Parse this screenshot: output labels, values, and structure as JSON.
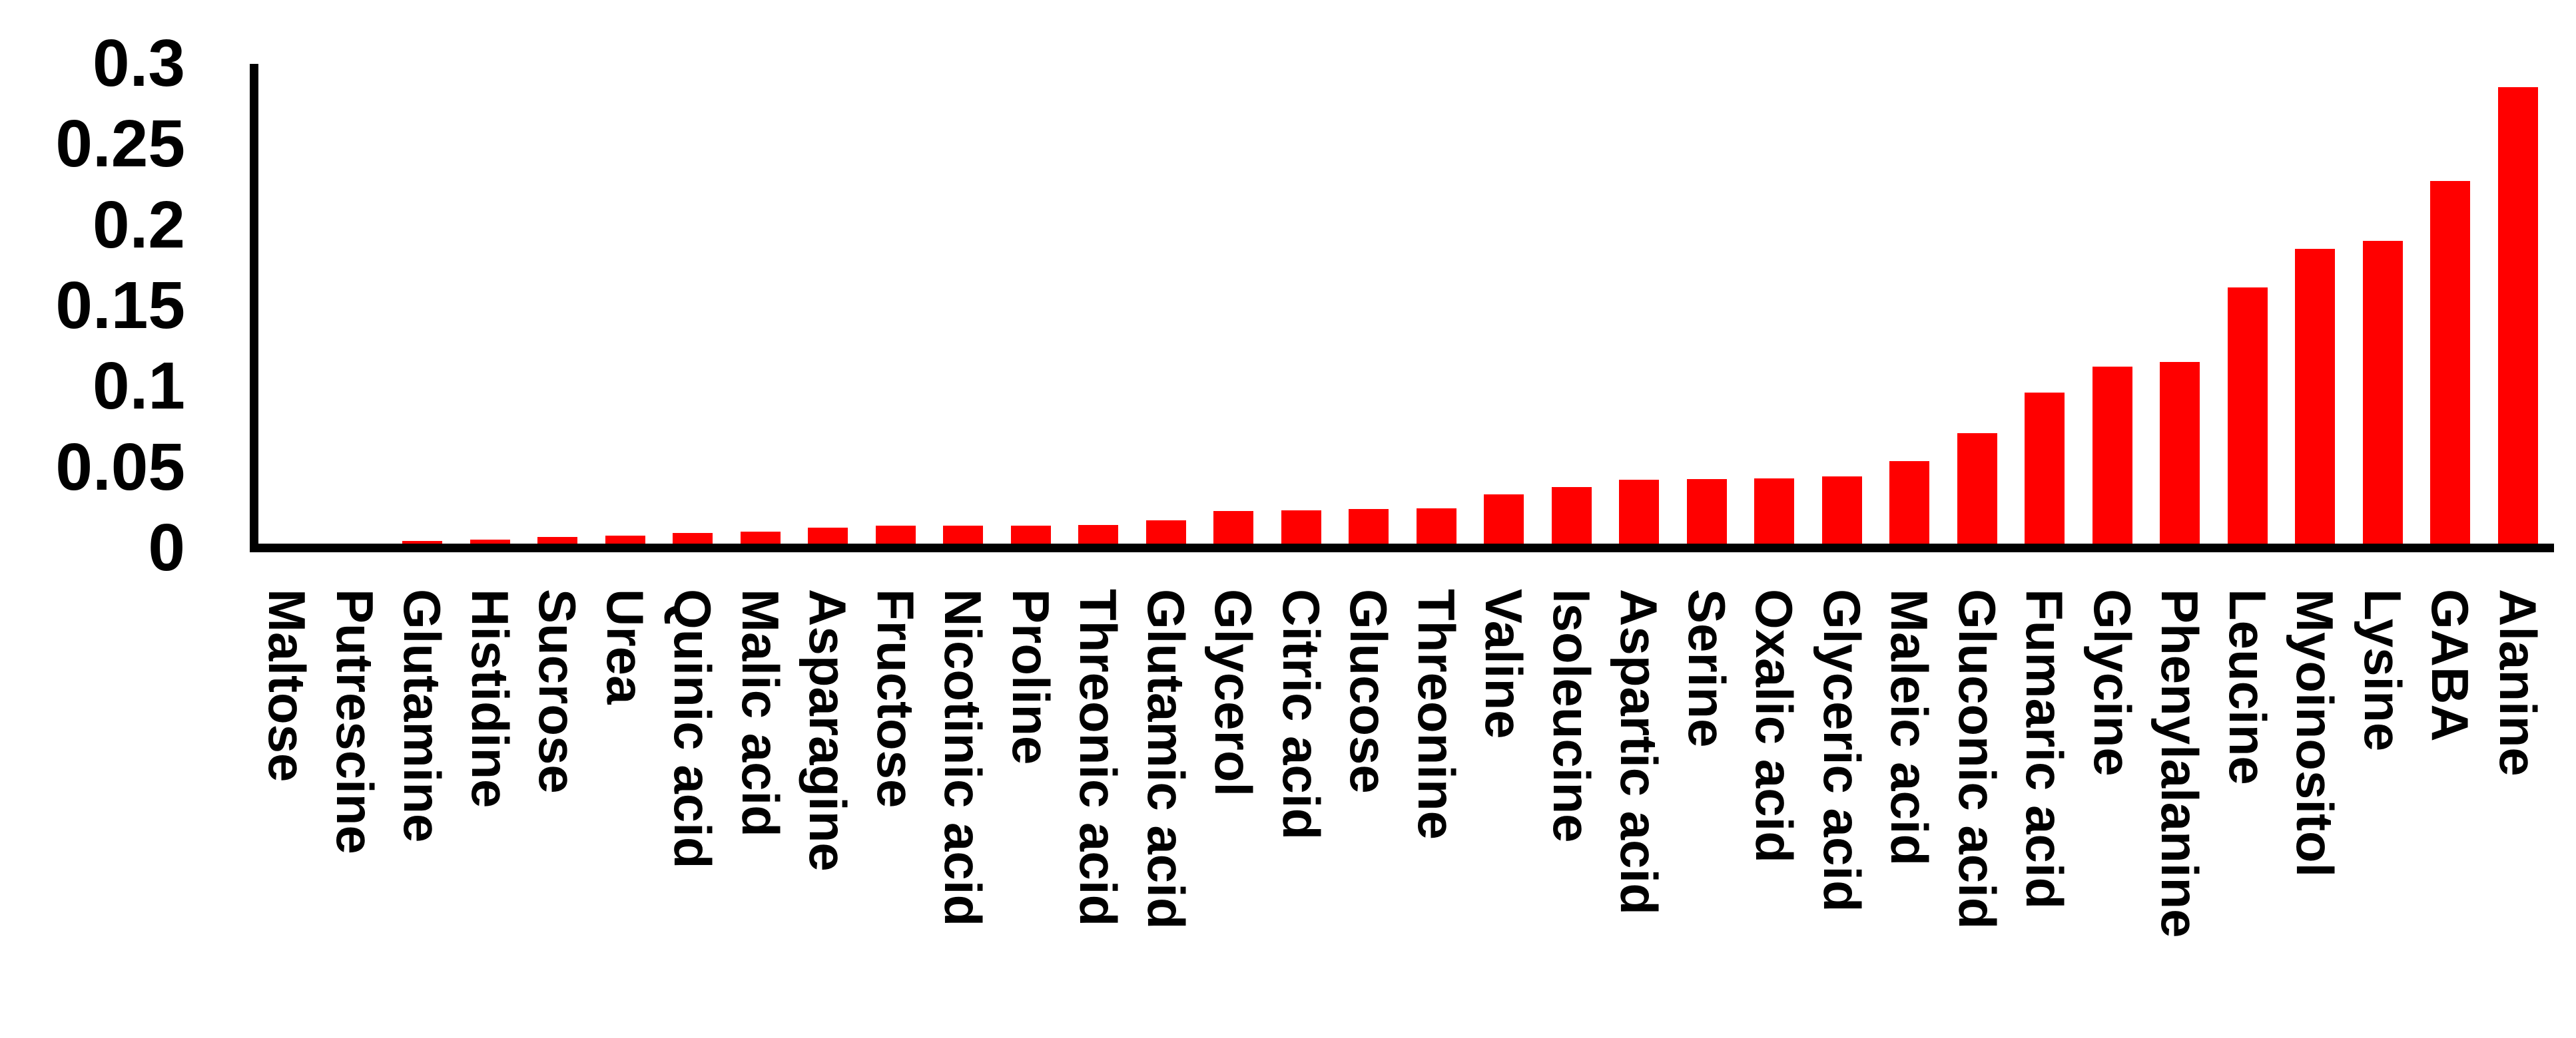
{
  "figure": {
    "background": "#ffffff"
  },
  "chart_data": {
    "type": "bar",
    "title": "",
    "xlabel": "",
    "ylabel": "",
    "categories": [
      "Maltose",
      "Putrescine",
      "Glutamine",
      "Histidine",
      "Sucrose",
      "Urea",
      "Quinic acid",
      "Malic acid",
      "Asparagine",
      "Fructose",
      "Nicotinic acid",
      "Proline",
      "Threonic acid",
      "Glutamic acid",
      "Glycerol",
      "Citric acid",
      "Glucose",
      "Threonine",
      "Valine",
      "Isoleucine",
      "Aspartic acid",
      "Serine",
      "Oxalic acid",
      "Glyceric acid",
      "Maleic acid",
      "Gluconic acid",
      "Fumaric acid",
      "Glycine",
      "Phenylalanine",
      "Leucine",
      "Myoinositol",
      "Lysine",
      "GABA",
      "Alanine"
    ],
    "values": [
      0.001,
      0.002,
      0.004,
      0.005,
      0.0065,
      0.0075,
      0.009,
      0.01,
      0.0125,
      0.0135,
      0.0137,
      0.0138,
      0.014,
      0.017,
      0.0225,
      0.023,
      0.024,
      0.0245,
      0.033,
      0.0375,
      0.042,
      0.0425,
      0.043,
      0.044,
      0.0535,
      0.071,
      0.096,
      0.112,
      0.115,
      0.161,
      0.185,
      0.19,
      0.227,
      0.285
    ],
    "ytick_labels": [
      "0.3",
      "0.25",
      "0.2",
      "0.15",
      "0.1",
      "0.05",
      "0"
    ],
    "ytick_values": [
      0.3,
      0.25,
      0.2,
      0.15,
      0.1,
      0.05,
      0
    ],
    "ylim": [
      0,
      0.3
    ],
    "grid": false,
    "legend": false,
    "sorted": "ascending",
    "bar_color": "#ff0000",
    "axis_color": "#000000",
    "tick_label_color": "#000000"
  }
}
